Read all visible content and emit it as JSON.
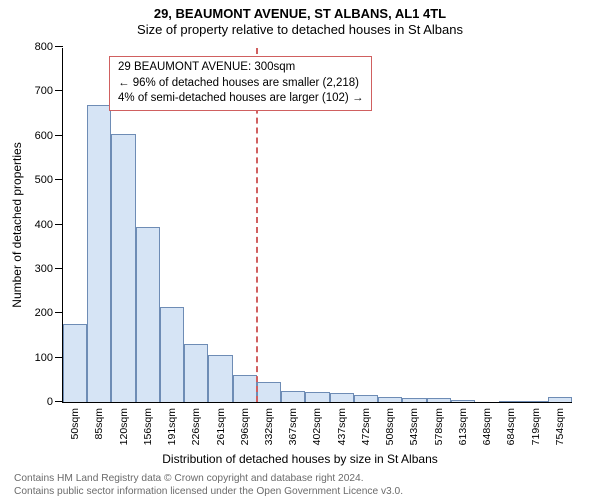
{
  "title": {
    "main": "29, BEAUMONT AVENUE, ST ALBANS, AL1 4TL",
    "sub": "Size of property relative to detached houses in St Albans"
  },
  "chart": {
    "type": "histogram",
    "y_axis": {
      "label": "Number of detached properties",
      "min": 0,
      "max": 800,
      "ticks": [
        0,
        100,
        200,
        300,
        400,
        500,
        600,
        700,
        800
      ]
    },
    "x_axis": {
      "label": "Distribution of detached houses by size in St Albans",
      "categories": [
        "50sqm",
        "85sqm",
        "120sqm",
        "156sqm",
        "191sqm",
        "226sqm",
        "261sqm",
        "296sqm",
        "332sqm",
        "367sqm",
        "402sqm",
        "437sqm",
        "472sqm",
        "508sqm",
        "543sqm",
        "578sqm",
        "613sqm",
        "648sqm",
        "684sqm",
        "719sqm",
        "754sqm"
      ],
      "tick_rotation": -90
    },
    "values": [
      175,
      670,
      605,
      395,
      215,
      130,
      105,
      62,
      45,
      25,
      22,
      20,
      15,
      11,
      10,
      8,
      5,
      0,
      3,
      2,
      12
    ],
    "bar_fill": "#d6e4f5",
    "bar_border": "#6e8cb5",
    "background": "#ffffff",
    "marker": {
      "category_index": 7,
      "color": "#d06060"
    },
    "annotation": {
      "line1": "29 BEAUMONT AVENUE: 300sqm",
      "line2": "← 96% of detached houses are smaller (2,218)",
      "line3": "4% of semi-detached houses are larger (102) →",
      "border_color": "#d06060"
    }
  },
  "attribution": {
    "line1": "Contains HM Land Registry data © Crown copyright and database right 2024.",
    "line2": "Contains public sector information licensed under the Open Government Licence v3.0."
  }
}
